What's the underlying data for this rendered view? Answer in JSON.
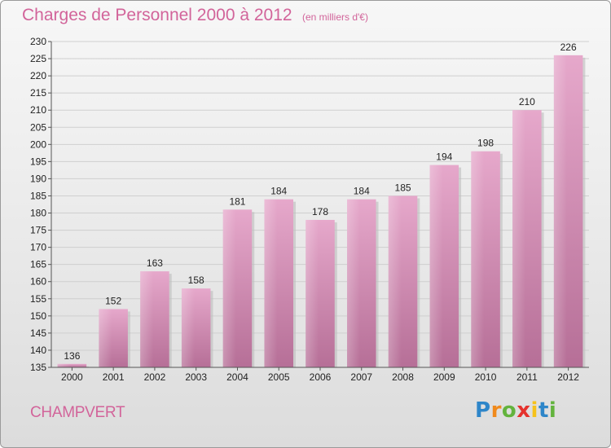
{
  "header": {
    "title": "Charges de Personnel 2000 à 2012",
    "subtitle": "(en milliers d'€)"
  },
  "footer": {
    "commune": "CHAMPVERT",
    "logo": "Proxiti"
  },
  "colors": {
    "text_accent": "#d2649a",
    "bar_top": "#e6a8cb",
    "bar_bottom": "#b66f97"
  },
  "chart_data": {
    "type": "bar",
    "title": "Charges de Personnel 2000 à 2012",
    "subtitle": "(en milliers d'€)",
    "categories": [
      "2000",
      "2001",
      "2002",
      "2003",
      "2004",
      "2005",
      "2006",
      "2007",
      "2008",
      "2009",
      "2010",
      "2011",
      "2012"
    ],
    "values": [
      136,
      152,
      163,
      158,
      181,
      184,
      178,
      184,
      185,
      194,
      198,
      210,
      226
    ],
    "xlabel": "",
    "ylabel": "",
    "ylim": [
      135,
      230
    ],
    "yticks": [
      135,
      140,
      145,
      150,
      155,
      160,
      165,
      170,
      175,
      180,
      185,
      190,
      195,
      200,
      205,
      210,
      215,
      220,
      225,
      230
    ],
    "grid": true,
    "legend": "none"
  }
}
